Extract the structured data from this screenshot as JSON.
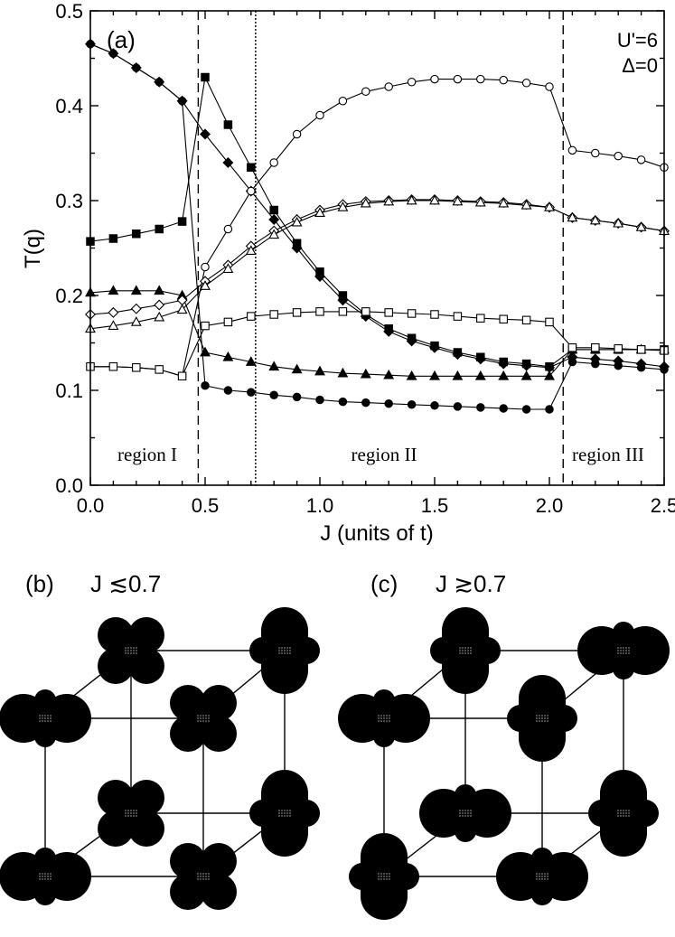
{
  "chart_data": {
    "type": "line",
    "panel_label": "(a)",
    "xlabel": "J (units of t)",
    "ylabel": "T(q)",
    "xlim": [
      0.0,
      2.5
    ],
    "ylim": [
      0.0,
      0.5
    ],
    "xticks": [
      0.0,
      0.5,
      1.0,
      1.5,
      2.0,
      2.5
    ],
    "xtick_labels": [
      "0.0",
      "0.5",
      "1.0",
      "1.5",
      "2.0",
      "2.5"
    ],
    "yticks": [
      0.0,
      0.1,
      0.2,
      0.3,
      0.4,
      0.5
    ],
    "ytick_labels": [
      "0.0",
      "0.1",
      "0.2",
      "0.3",
      "0.4",
      "0.5"
    ],
    "grid": false,
    "params": [
      "U'=6",
      "Δ=0"
    ],
    "regions": [
      "region I",
      "region II",
      "region III"
    ],
    "region_boundaries": {
      "dashed": [
        0.47,
        2.06
      ],
      "dotted": [
        0.72
      ]
    },
    "x": [
      0.0,
      0.1,
      0.2,
      0.3,
      0.4,
      0.5,
      0.6,
      0.7,
      0.8,
      0.9,
      1.0,
      1.1,
      1.2,
      1.3,
      1.4,
      1.5,
      1.6,
      1.7,
      1.8,
      1.9,
      2.0,
      2.1,
      2.2,
      2.3,
      2.4,
      2.5
    ],
    "series": [
      {
        "marker": "filled-circle",
        "values": [
          0.465,
          0.455,
          0.44,
          0.425,
          0.405,
          0.105,
          0.1,
          0.098,
          0.095,
          0.093,
          0.09,
          0.088,
          0.087,
          0.086,
          0.085,
          0.084,
          0.083,
          0.082,
          0.081,
          0.08,
          0.08,
          0.13,
          0.128,
          0.126,
          0.124,
          0.122
        ]
      },
      {
        "marker": "filled-square",
        "values": [
          0.257,
          0.26,
          0.265,
          0.27,
          0.278,
          0.43,
          0.38,
          0.335,
          0.29,
          0.255,
          0.225,
          0.2,
          0.18,
          0.165,
          0.155,
          0.147,
          0.14,
          0.135,
          0.13,
          0.128,
          0.125,
          0.143,
          0.143,
          0.143,
          0.143,
          0.143
        ]
      },
      {
        "marker": "filled-diamond",
        "values": [
          0.465,
          0.455,
          0.44,
          0.425,
          0.405,
          0.37,
          0.34,
          0.31,
          0.28,
          0.25,
          0.22,
          0.195,
          0.178,
          0.162,
          0.152,
          0.145,
          0.138,
          0.133,
          0.128,
          0.126,
          0.124,
          0.135,
          0.133,
          0.131,
          0.128,
          0.125
        ]
      },
      {
        "marker": "filled-triangle",
        "values": [
          0.203,
          0.205,
          0.205,
          0.205,
          0.2,
          0.14,
          0.135,
          0.13,
          0.125,
          0.122,
          0.12,
          0.118,
          0.117,
          0.116,
          0.115,
          0.115,
          0.115,
          0.115,
          0.115,
          0.115,
          0.115,
          0.143,
          0.143,
          0.143,
          0.143,
          0.143
        ]
      },
      {
        "marker": "open-circle",
        "values": [
          0.125,
          0.125,
          0.124,
          0.122,
          0.115,
          0.23,
          0.27,
          0.31,
          0.34,
          0.37,
          0.39,
          0.405,
          0.415,
          0.42,
          0.425,
          0.428,
          0.428,
          0.428,
          0.427,
          0.424,
          0.42,
          0.353,
          0.35,
          0.347,
          0.343,
          0.335
        ]
      },
      {
        "marker": "open-square",
        "values": [
          0.125,
          0.125,
          0.124,
          0.122,
          0.115,
          0.168,
          0.172,
          0.178,
          0.18,
          0.182,
          0.183,
          0.183,
          0.183,
          0.182,
          0.181,
          0.18,
          0.178,
          0.176,
          0.175,
          0.174,
          0.172,
          0.145,
          0.145,
          0.144,
          0.143,
          0.142
        ]
      },
      {
        "marker": "open-diamond",
        "values": [
          0.18,
          0.182,
          0.186,
          0.19,
          0.195,
          0.215,
          0.232,
          0.252,
          0.268,
          0.28,
          0.29,
          0.296,
          0.299,
          0.3,
          0.301,
          0.301,
          0.3,
          0.299,
          0.298,
          0.296,
          0.293,
          0.282,
          0.279,
          0.276,
          0.272,
          0.268
        ]
      },
      {
        "marker": "open-triangle",
        "values": [
          0.165,
          0.168,
          0.172,
          0.177,
          0.185,
          0.21,
          0.228,
          0.247,
          0.264,
          0.277,
          0.287,
          0.293,
          0.297,
          0.299,
          0.3,
          0.3,
          0.299,
          0.298,
          0.297,
          0.295,
          0.293,
          0.282,
          0.279,
          0.276,
          0.272,
          0.268
        ]
      }
    ]
  },
  "panels": {
    "b": {
      "label": "(b)",
      "condition": "J ≲0.7"
    },
    "c": {
      "label": "(c)",
      "condition": "J ≳0.7"
    }
  }
}
